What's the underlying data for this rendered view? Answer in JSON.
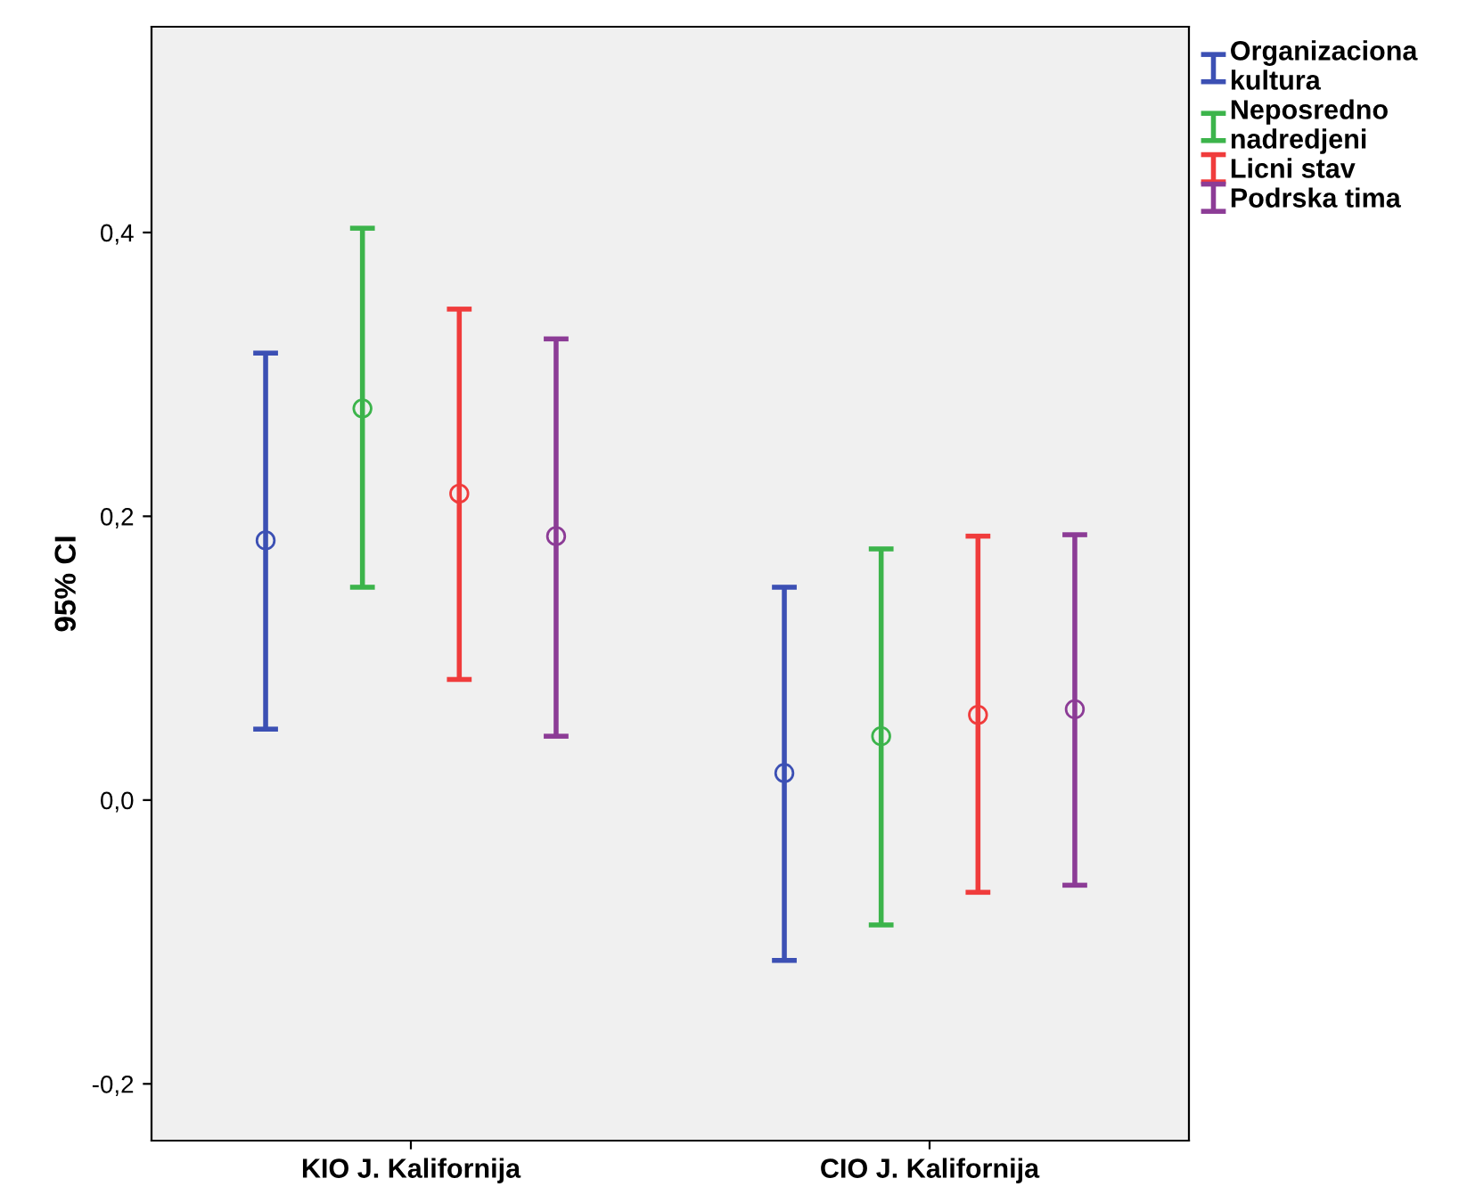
{
  "chart_data": {
    "type": "scatter",
    "ylabel": "95% CI",
    "categories": [
      "KIO J. Kalifornija",
      "CIO J. Kalifornija"
    ],
    "ylim": [
      -0.24,
      0.545
    ],
    "yticks": [
      {
        "value": -0.2,
        "label": "-0,2"
      },
      {
        "value": 0,
        "label": "0,0"
      },
      {
        "value": 0.2,
        "label": "0,2"
      },
      {
        "value": 0.4,
        "label": "0,4"
      }
    ],
    "marker": "circle",
    "grid": false,
    "legend": "top right",
    "series": [
      {
        "name": "Organizaciona kultura",
        "color": "#3c50b4",
        "values": [
          0.183,
          0.019
        ],
        "errors": [
          [
            0.05,
            0.315
          ],
          [
            -0.113,
            0.15
          ]
        ]
      },
      {
        "name": "Neposredno nadredjeni",
        "color": "#3cb44b",
        "values": [
          0.276,
          0.045
        ],
        "errors": [
          [
            0.15,
            0.403
          ],
          [
            -0.088,
            0.177
          ]
        ]
      },
      {
        "name": "Licni stav",
        "color": "#f03c3c",
        "values": [
          0.216,
          0.06
        ],
        "errors": [
          [
            0.085,
            0.346
          ],
          [
            -0.065,
            0.186
          ]
        ]
      },
      {
        "name": "Podrska tima",
        "color": "#8c3c96",
        "values": [
          0.186,
          0.064
        ],
        "errors": [
          [
            0.045,
            0.325
          ],
          [
            -0.06,
            0.187
          ]
        ]
      }
    ]
  }
}
